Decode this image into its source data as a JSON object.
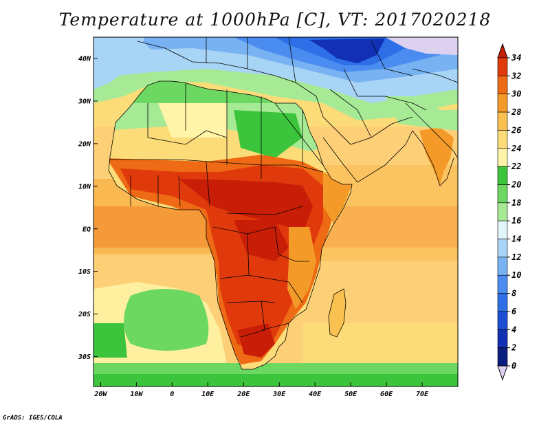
{
  "title": "Temperature at 1000hPa [C], VT: 2017020218",
  "footer": "GrADS: IGES/COLA",
  "map": {
    "lon_range": [
      -22,
      80
    ],
    "lat_range": [
      -37,
      45
    ],
    "lon_ticks": [
      {
        "value": -20,
        "label": "20W"
      },
      {
        "value": -10,
        "label": "10W"
      },
      {
        "value": 0,
        "label": "0"
      },
      {
        "value": 10,
        "label": "10E"
      },
      {
        "value": 20,
        "label": "20E"
      },
      {
        "value": 30,
        "label": "30E"
      },
      {
        "value": 40,
        "label": "40E"
      },
      {
        "value": 50,
        "label": "50E"
      },
      {
        "value": 60,
        "label": "60E"
      },
      {
        "value": 70,
        "label": "70E"
      }
    ],
    "lat_ticks": [
      {
        "value": 40,
        "label": "40N"
      },
      {
        "value": 30,
        "label": "30N"
      },
      {
        "value": 20,
        "label": "20N"
      },
      {
        "value": 10,
        "label": "10N"
      },
      {
        "value": 0,
        "label": "EQ"
      },
      {
        "value": -10,
        "label": "10S"
      },
      {
        "value": -20,
        "label": "20S"
      },
      {
        "value": -30,
        "label": "30S"
      }
    ]
  },
  "colorbar": {
    "levels": [
      "0",
      "2",
      "4",
      "6",
      "8",
      "10",
      "12",
      "14",
      "16",
      "18",
      "20",
      "22",
      "24",
      "26",
      "28",
      "30",
      "32",
      "34"
    ],
    "colors": [
      "#dcd2f0",
      "#0a1e80",
      "#1230b4",
      "#1e4ed2",
      "#2e6ee6",
      "#4a8cf0",
      "#78b2f2",
      "#a8d4f6",
      "#e0f6fa",
      "#a6ea96",
      "#6cd862",
      "#3cc43c",
      "#fff4a8",
      "#fcdc78",
      "#fac050",
      "#f49a28",
      "#ee6a14",
      "#e03a0c",
      "#c81e08"
    ]
  }
}
